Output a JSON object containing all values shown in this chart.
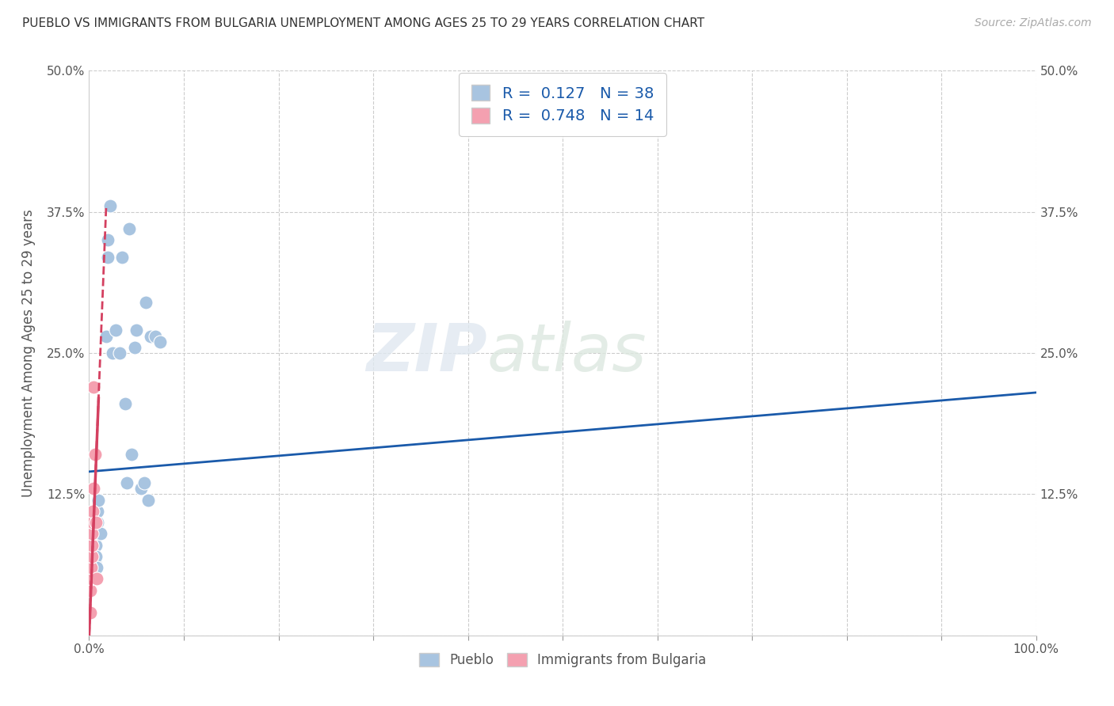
{
  "title": "PUEBLO VS IMMIGRANTS FROM BULGARIA UNEMPLOYMENT AMONG AGES 25 TO 29 YEARS CORRELATION CHART",
  "source": "Source: ZipAtlas.com",
  "xlabel": "",
  "ylabel": "Unemployment Among Ages 25 to 29 years",
  "xlim": [
    0,
    1.0
  ],
  "ylim": [
    0,
    0.5
  ],
  "xticks": [
    0.0,
    0.1,
    0.2,
    0.3,
    0.4,
    0.5,
    0.6,
    0.7,
    0.8,
    0.9,
    1.0
  ],
  "xticklabels": [
    "0.0%",
    "",
    "",
    "",
    "",
    "",
    "",
    "",
    "",
    "",
    "100.0%"
  ],
  "yticks": [
    0.0,
    0.125,
    0.25,
    0.375,
    0.5
  ],
  "yticklabels": [
    "",
    "12.5%",
    "25.0%",
    "37.5%",
    "50.0%"
  ],
  "pueblo_R": 0.127,
  "pueblo_N": 38,
  "bulgaria_R": 0.748,
  "bulgaria_N": 14,
  "pueblo_color": "#a8c4e0",
  "bulgaria_color": "#f4a0b0",
  "pueblo_line_color": "#1a5aaa",
  "bulgaria_line_color": "#d44060",
  "watermark_part1": "ZIP",
  "watermark_part2": "atlas",
  "pueblo_x": [
    0.005,
    0.005,
    0.005,
    0.005,
    0.005,
    0.005,
    0.006,
    0.006,
    0.006,
    0.007,
    0.007,
    0.007,
    0.008,
    0.009,
    0.009,
    0.01,
    0.012,
    0.018,
    0.02,
    0.02,
    0.022,
    0.025,
    0.028,
    0.032,
    0.035,
    0.038,
    0.04,
    0.042,
    0.045,
    0.048,
    0.05,
    0.055,
    0.058,
    0.06,
    0.062,
    0.065,
    0.07,
    0.075
  ],
  "pueblo_y": [
    0.085,
    0.09,
    0.1,
    0.095,
    0.08,
    0.075,
    0.07,
    0.065,
    0.08,
    0.08,
    0.09,
    0.07,
    0.06,
    0.1,
    0.11,
    0.12,
    0.09,
    0.265,
    0.35,
    0.335,
    0.38,
    0.25,
    0.27,
    0.25,
    0.335,
    0.205,
    0.135,
    0.36,
    0.16,
    0.255,
    0.27,
    0.13,
    0.135,
    0.295,
    0.12,
    0.265,
    0.265,
    0.26
  ],
  "bulgaria_x": [
    0.001,
    0.001,
    0.002,
    0.002,
    0.003,
    0.003,
    0.003,
    0.004,
    0.004,
    0.005,
    0.005,
    0.006,
    0.007,
    0.008
  ],
  "bulgaria_y": [
    0.02,
    0.04,
    0.05,
    0.06,
    0.07,
    0.08,
    0.09,
    0.1,
    0.11,
    0.13,
    0.22,
    0.16,
    0.1,
    0.05
  ],
  "pueblo_line_x": [
    0.0,
    1.0
  ],
  "pueblo_line_y": [
    0.145,
    0.215
  ],
  "bulgaria_line_x": [
    0.0,
    0.018
  ],
  "bulgaria_line_y": [
    0.0,
    0.38
  ]
}
